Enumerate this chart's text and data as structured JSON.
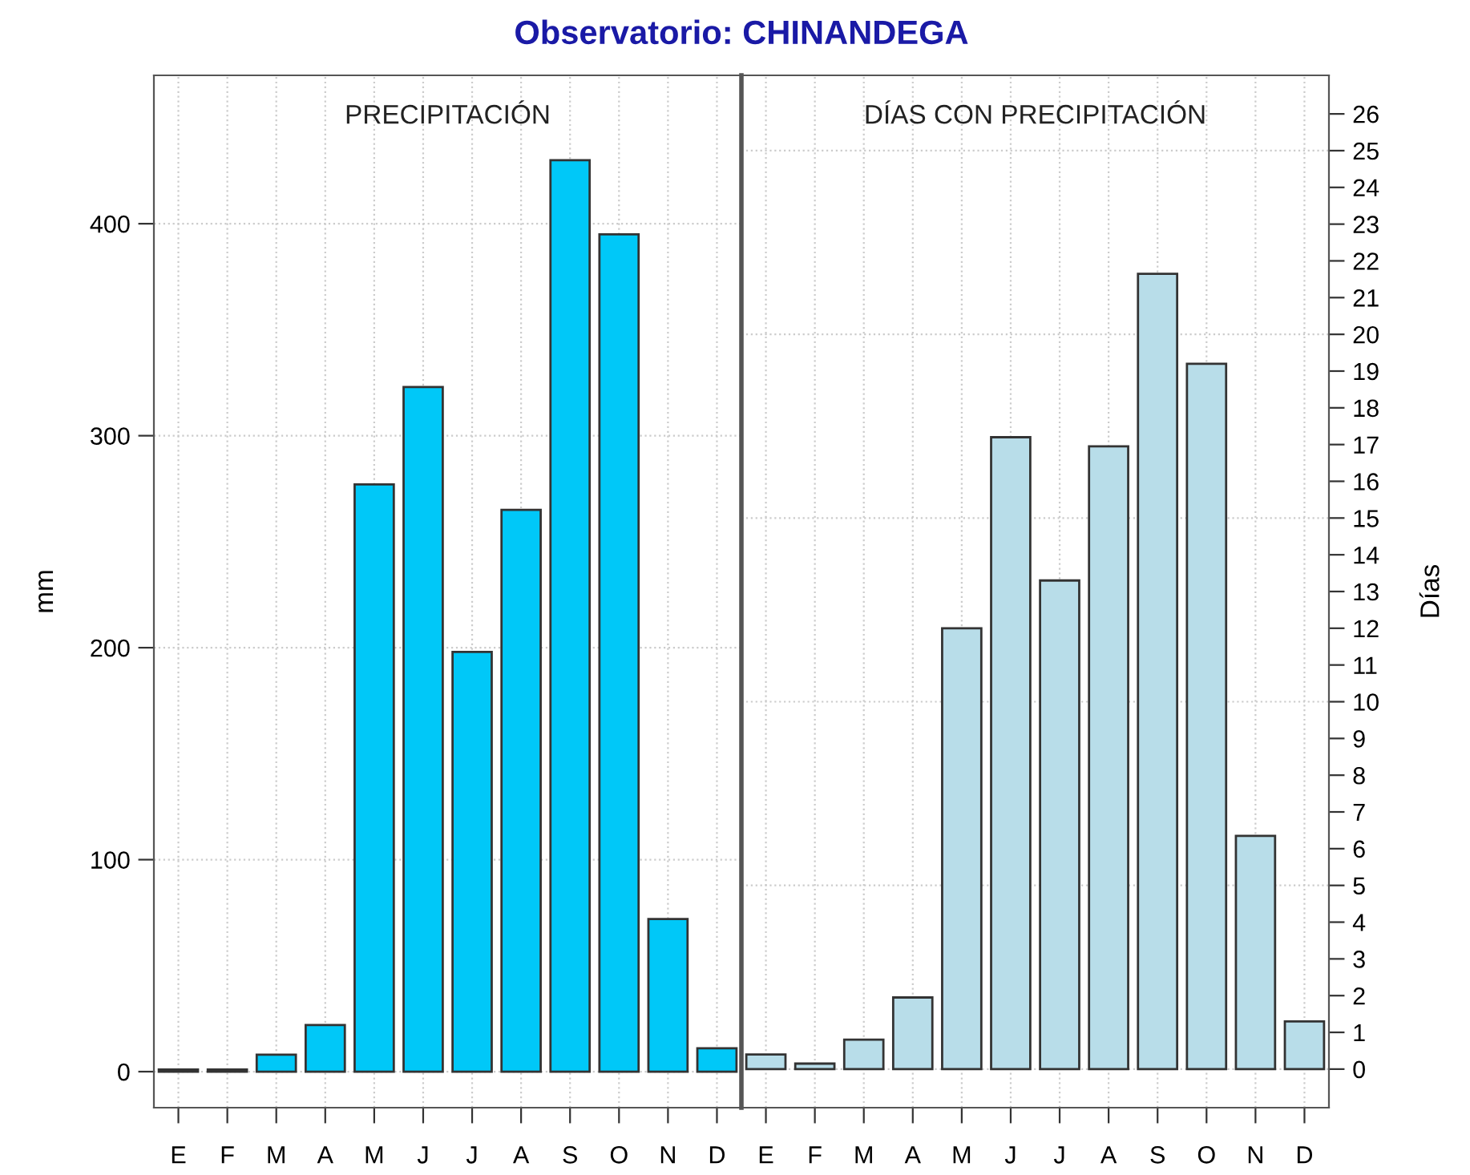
{
  "chart_data": [
    {
      "type": "bar",
      "title": "Observatorio: CHINANDEGA",
      "ylabel": "mm",
      "annotations": [
        "PRECIPITACIÓN"
      ],
      "categories": [
        "E",
        "F",
        "M",
        "A",
        "M",
        "J",
        "J",
        "A",
        "S",
        "O",
        "N",
        "D"
      ],
      "values": [
        1,
        1,
        8,
        22,
        277,
        323,
        198,
        265,
        430,
        395,
        72,
        11
      ],
      "color": "#00c8f8",
      "ylim": [
        -17,
        470
      ],
      "yticks": [
        0,
        100,
        200,
        300,
        400
      ],
      "grid": true
    },
    {
      "type": "bar",
      "y2label": "Días",
      "annotations": [
        "DÍAS CON PRECIPITACIÓN"
      ],
      "categories": [
        "E",
        "F",
        "M",
        "A",
        "M",
        "J",
        "J",
        "A",
        "S",
        "O",
        "N",
        "D"
      ],
      "series": [
        {
          "axis": "y2",
          "color": "#b8dde9",
          "values": [
            0.4,
            0.15,
            0.8,
            1.95,
            12,
            17.2,
            13.3,
            16.95,
            21.65,
            19.2,
            6.35,
            1.3
          ]
        }
      ],
      "y2lim": [
        -1.05,
        27.05
      ],
      "y2ticks": [
        0,
        1,
        2,
        3,
        4,
        5,
        6,
        7,
        8,
        9,
        10,
        11,
        12,
        13,
        14,
        15,
        16,
        17,
        18,
        19,
        20,
        21,
        22,
        23,
        24,
        25,
        26
      ],
      "grid": true
    }
  ]
}
